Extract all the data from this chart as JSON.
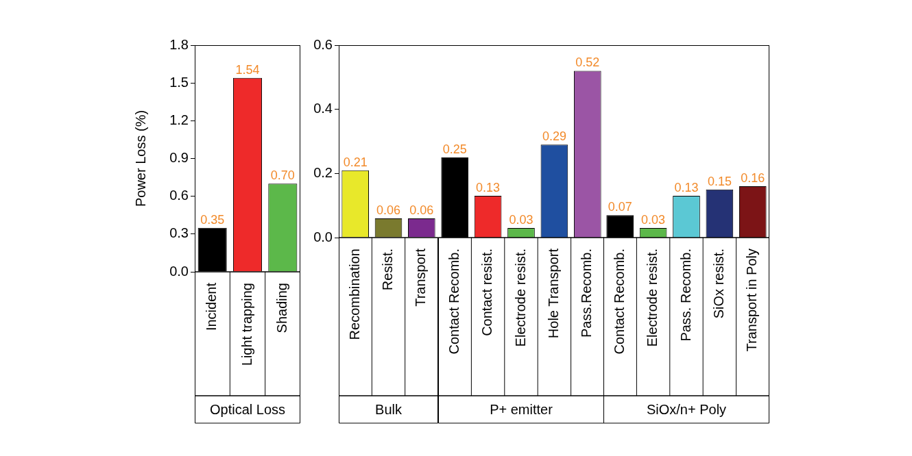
{
  "chart_data": [
    {
      "type": "bar",
      "ylabel": "Power Loss (%)",
      "categories": [
        "Incident",
        "Light trapping",
        "Shading"
      ],
      "values": [
        0.35,
        1.54,
        0.7
      ],
      "value_labels": [
        "0.35",
        "1.54",
        "0.70"
      ],
      "colors": [
        "#000000",
        "#ee2a2a",
        "#5cb84a"
      ],
      "ylim": [
        0,
        1.8
      ],
      "yticks": [
        {
          "value": 0,
          "label": "0.0"
        },
        0.3,
        0.6,
        0.9,
        1.2,
        1.5,
        1.8
      ],
      "grid": false,
      "legend": false,
      "annotations": [
        "Optical Loss"
      ]
    },
    {
      "type": "bar",
      "categories": [
        "Recombination",
        "Resist.",
        "Transport"
      ],
      "values": [
        0.21,
        0.06,
        0.06
      ],
      "value_labels": [
        "0.21",
        "0.06",
        "0.06"
      ],
      "colors": [
        "#e8e82a",
        "#7a7a2e",
        "#7b2a8e"
      ],
      "ylim": [
        0,
        0.6
      ],
      "yticks": [
        {
          "value": 0,
          "label": "0.0"
        },
        0.2,
        0.4,
        0.6
      ],
      "grid": false,
      "legend": false,
      "annotations": [
        "Bulk"
      ]
    },
    {
      "type": "bar",
      "categories": [
        "Contact Recomb.",
        "Contact resist.",
        "Electrode resist.",
        "Hole Transport",
        "Pass.Recomb."
      ],
      "values": [
        0.25,
        0.13,
        0.03,
        0.29,
        0.52
      ],
      "value_labels": [
        "0.25",
        "0.13",
        "0.03",
        "0.29",
        "0.52"
      ],
      "colors": [
        "#000000",
        "#ee2a2a",
        "#5cb84a",
        "#1f4fa0",
        "#9b55a5"
      ],
      "ylim": [
        0,
        0.6
      ],
      "tick_labels": "x",
      "grid": false,
      "legend": false,
      "annotations": [
        "P+ emitter"
      ]
    },
    {
      "type": "bar",
      "categories": [
        "Contact Recomb.",
        "Electrode resist.",
        "Pass. Recomb.",
        "SiOx resist.",
        "Transport in Poly"
      ],
      "values": [
        0.07,
        0.03,
        0.13,
        0.15,
        0.16
      ],
      "value_labels": [
        "0.07",
        "0.03",
        "0.13",
        "0.15",
        "0.16"
      ],
      "colors": [
        "#000000",
        "#5cb84a",
        "#5bc8d4",
        "#253275",
        "#7c1416"
      ],
      "ylim": [
        0,
        0.6
      ],
      "tick_labels": "x",
      "grid": false,
      "legend": false,
      "annotations": [
        "SiOx/n+ Poly"
      ]
    }
  ]
}
